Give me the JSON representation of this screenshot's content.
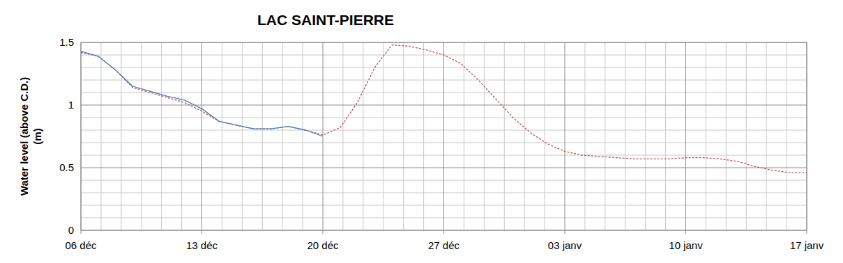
{
  "chart_data": {
    "type": "line",
    "title": "LAC SAINT-PIERRE",
    "y_label": "Water level (above C.D.) (m)",
    "x": [
      0,
      1,
      2,
      3,
      4,
      5,
      6,
      7,
      8,
      9,
      10,
      11,
      12,
      13,
      14,
      15,
      16,
      17,
      18,
      19,
      20,
      21,
      22,
      23,
      24,
      25,
      26,
      27,
      28,
      29,
      30,
      31,
      32,
      33,
      34,
      35,
      36,
      37,
      38,
      39,
      40,
      41,
      42
    ],
    "xlim": [
      0,
      42
    ],
    "xticks": [
      {
        "value": 0,
        "label": "06 déc"
      },
      {
        "value": 7,
        "label": "13 déc"
      },
      {
        "value": 14,
        "label": "20 déc"
      },
      {
        "value": 21,
        "label": "27 déc"
      },
      {
        "value": 28,
        "label": "03 janv"
      },
      {
        "value": 35,
        "label": "10 janv"
      },
      {
        "value": 42,
        "label": "17 janv"
      }
    ],
    "ylim": [
      0,
      1.5
    ],
    "yticks": [
      0,
      0.5,
      1,
      1.5
    ],
    "grid": true,
    "series": [
      {
        "color": "#4a7ebb",
        "line_style": "solid",
        "values": [
          1.43,
          1.39,
          1.28,
          1.15,
          1.11,
          1.07,
          1.04,
          0.97,
          0.87,
          0.84,
          0.81,
          0.81,
          0.83,
          0.8,
          0.75,
          null,
          null,
          null,
          null,
          null,
          null,
          null,
          null,
          null,
          null,
          null,
          null,
          null,
          null,
          null,
          null,
          null,
          null,
          null,
          null,
          null,
          null,
          null,
          null,
          null,
          null,
          null,
          null
        ]
      },
      {
        "color": "#c0504d",
        "line_style": "dashed",
        "values": [
          1.42,
          1.39,
          1.28,
          1.14,
          1.1,
          1.06,
          1.02,
          0.95,
          0.87,
          0.84,
          0.81,
          0.81,
          0.83,
          0.8,
          0.76,
          0.82,
          1.02,
          1.3,
          1.48,
          1.47,
          1.44,
          1.4,
          1.33,
          1.2,
          1.05,
          0.9,
          0.78,
          0.69,
          0.63,
          0.6,
          0.59,
          0.58,
          0.57,
          0.57,
          0.57,
          0.58,
          0.58,
          0.57,
          0.55,
          0.51,
          0.48,
          0.46,
          0.46
        ]
      }
    ]
  }
}
